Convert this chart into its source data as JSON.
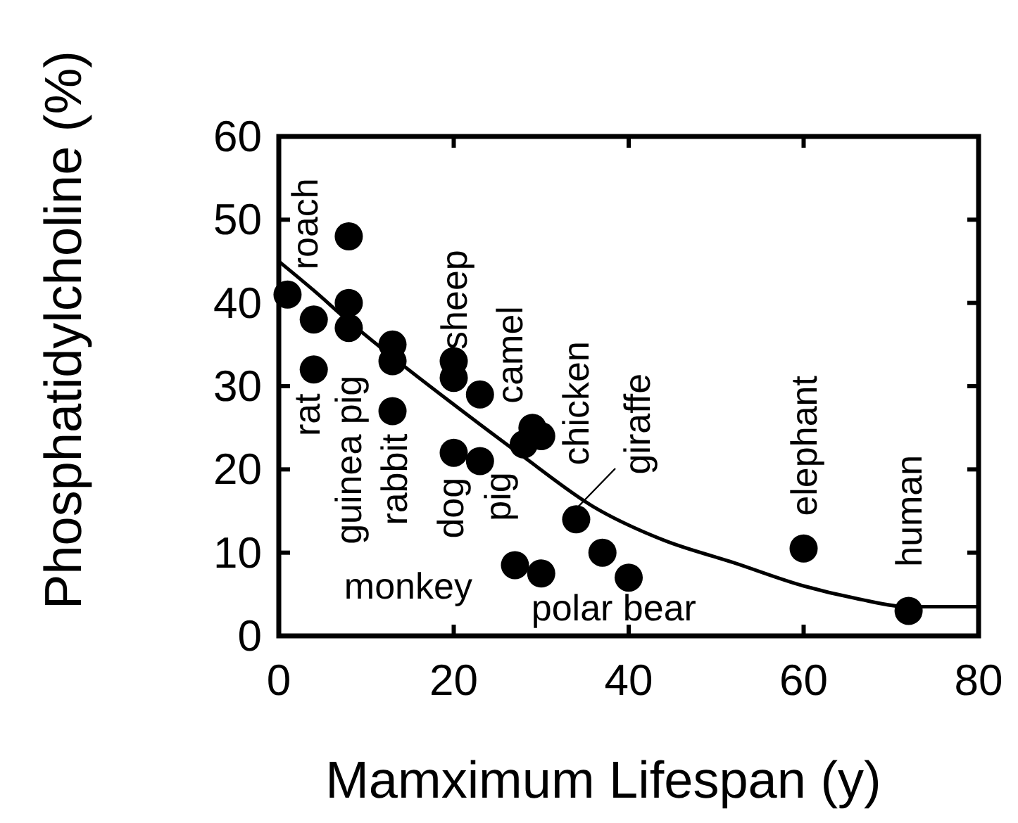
{
  "chart_data": {
    "type": "scatter",
    "xlabel": "Mamximum Lifespan (y)",
    "ylabel": "Phosphatidylcholine (%)",
    "xlim": [
      0,
      80
    ],
    "ylim": [
      0,
      60
    ],
    "xticks": [
      0,
      20,
      40,
      60,
      80
    ],
    "yticks": [
      0,
      10,
      20,
      30,
      40,
      50,
      60
    ],
    "grid": false,
    "marker": "circle",
    "series": [
      {
        "color": "#000000",
        "x": [
          1,
          4,
          4,
          8,
          8,
          8,
          13,
          13,
          13,
          20,
          20,
          23,
          20,
          23,
          28,
          29,
          30,
          34,
          27,
          30,
          37,
          40,
          60,
          72
        ],
        "values": [
          41,
          38,
          32,
          48,
          40,
          37,
          35,
          33,
          27,
          33,
          31,
          29,
          22,
          21,
          23,
          25,
          24,
          14,
          8.5,
          7.5,
          10,
          7,
          10.5,
          3
        ]
      },
      {
        "type": "line",
        "marker": "none",
        "color": "#000000",
        "line_style": "solid",
        "x": [
          0,
          4,
          8,
          13,
          20,
          28,
          36,
          44,
          52,
          60,
          66,
          72,
          80
        ],
        "values": [
          45,
          41.5,
          37.8,
          33.5,
          27.8,
          21.5,
          15.5,
          11.5,
          8.8,
          6,
          4.5,
          3.5,
          3.5
        ]
      }
    ],
    "annotations": [
      "roach",
      "rat",
      "guinea pig",
      "rabbit",
      "dog",
      "sheep",
      "pig",
      "camel",
      "chicken",
      "giraffe",
      "elephant",
      "human",
      "monkey",
      "polar bear"
    ]
  }
}
